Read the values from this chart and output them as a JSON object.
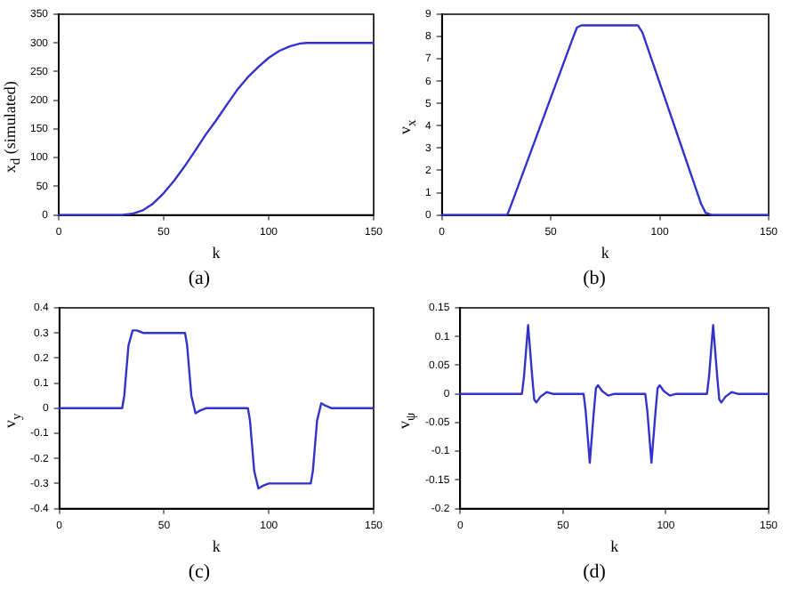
{
  "chart_data": [
    {
      "type": "line",
      "title": "(a)",
      "xlabel": "k",
      "ylabel": "x$_{d}$ (simulated)",
      "xlim": [
        0,
        150
      ],
      "xticks": [
        0,
        50,
        100,
        150
      ],
      "ylim": [
        0,
        350
      ],
      "yticks": [
        0,
        50,
        100,
        150,
        200,
        250,
        300,
        350
      ],
      "grid": false,
      "legend": false,
      "marker": "none",
      "line_style": "solid",
      "series": [
        {
          "color": "#3333cc",
          "x": [
            0,
            30,
            35,
            40,
            45,
            50,
            55,
            60,
            65,
            70,
            75,
            80,
            85,
            90,
            95,
            100,
            105,
            110,
            115,
            118,
            150
          ],
          "values": [
            0,
            0,
            2,
            8,
            20,
            38,
            60,
            85,
            112,
            140,
            165,
            192,
            218,
            240,
            258,
            274,
            286,
            294,
            299,
            300,
            300
          ]
        }
      ]
    },
    {
      "type": "line",
      "title": "(b)",
      "xlabel": "k",
      "ylabel": "v$_{x}$",
      "xlim": [
        0,
        150
      ],
      "xticks": [
        0,
        50,
        100,
        150
      ],
      "ylim": [
        0,
        9
      ],
      "yticks": [
        0,
        1,
        2,
        3,
        4,
        5,
        6,
        7,
        8,
        9
      ],
      "grid": false,
      "legend": false,
      "marker": "none",
      "line_style": "solid",
      "series": [
        {
          "color": "#3333cc",
          "x": [
            0,
            30,
            32,
            60,
            62,
            64,
            90,
            92,
            119,
            121,
            124,
            150
          ],
          "values": [
            0,
            0,
            0.5,
            7.9,
            8.4,
            8.5,
            8.5,
            8.2,
            0.5,
            0.1,
            0,
            0
          ]
        }
      ]
    },
    {
      "type": "line",
      "title": "(c)",
      "xlabel": "k",
      "ylabel": "v$_{y}$",
      "xlim": [
        0,
        150
      ],
      "xticks": [
        0,
        50,
        100,
        150
      ],
      "ylim": [
        -0.4,
        0.4
      ],
      "yticks": [
        -0.4,
        -0.3,
        -0.2,
        -0.1,
        0,
        0.1,
        0.2,
        0.3,
        0.4
      ],
      "grid": false,
      "legend": false,
      "marker": "none",
      "line_style": "solid",
      "series": [
        {
          "color": "#3333cc",
          "x": [
            0,
            30,
            31,
            33,
            35,
            37,
            40,
            60,
            61,
            63,
            65,
            67,
            70,
            90,
            91,
            93,
            95,
            97,
            100,
            120,
            121,
            123,
            125,
            127,
            130,
            150
          ],
          "values": [
            0,
            0,
            0.05,
            0.25,
            0.31,
            0.31,
            0.3,
            0.3,
            0.25,
            0.05,
            -0.02,
            -0.01,
            0,
            0,
            -0.05,
            -0.25,
            -0.32,
            -0.31,
            -0.3,
            -0.3,
            -0.25,
            -0.05,
            0.02,
            0.01,
            0,
            0
          ]
        }
      ]
    },
    {
      "type": "line",
      "title": "(d)",
      "xlabel": "k",
      "ylabel": "v$_{ψ}$",
      "xlim": [
        0,
        150
      ],
      "xticks": [
        0,
        50,
        100,
        150
      ],
      "ylim": [
        -0.2,
        0.15
      ],
      "yticks": [
        -0.2,
        -0.15,
        -0.1,
        -0.05,
        0,
        0.05,
        0.1,
        0.15
      ],
      "grid": false,
      "legend": false,
      "marker": "none",
      "line_style": "solid",
      "series": [
        {
          "color": "#3333cc",
          "x": [
            0,
            30,
            31,
            33,
            35,
            36,
            37,
            39,
            42,
            45,
            60,
            61,
            63,
            65,
            66,
            67,
            69,
            72,
            75,
            90,
            91,
            93,
            95,
            96,
            97,
            99,
            102,
            105,
            120,
            121,
            123,
            125,
            126,
            127,
            129,
            132,
            135,
            150
          ],
          "values": [
            0,
            0,
            0.03,
            0.12,
            0.03,
            -0.01,
            -0.015,
            -0.005,
            0.003,
            0,
            0,
            -0.03,
            -0.12,
            -0.03,
            0.01,
            0.015,
            0.005,
            -0.003,
            0,
            0,
            -0.03,
            -0.12,
            -0.03,
            0.01,
            0.015,
            0.005,
            -0.003,
            0,
            0,
            0.03,
            0.12,
            0.03,
            -0.01,
            -0.015,
            -0.005,
            0.003,
            0,
            0
          ]
        }
      ]
    }
  ]
}
